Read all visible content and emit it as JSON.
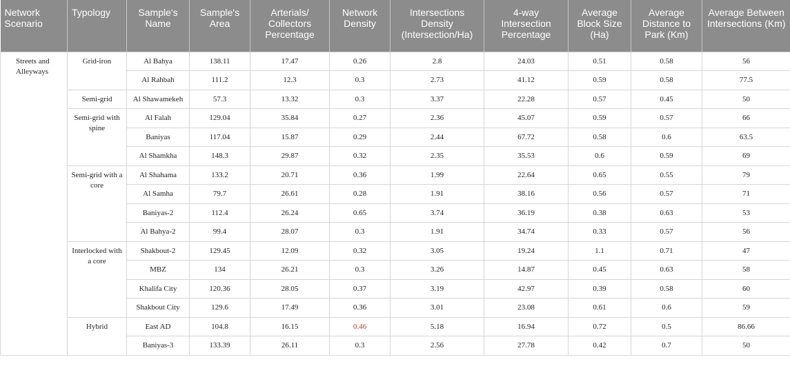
{
  "columns": [
    "Network Scenario",
    "Typology",
    "Sample's Name",
    "Sample's Area",
    "Arterials/ Collectors Percentage",
    "Network Density",
    "Intersections Density (Intersection/Ha)",
    "4-way Intersection Percentage",
    "Average Block Size (Ha)",
    "Average Distance to Park (Km)",
    "Average Between Intersections (Km)"
  ],
  "scenario": "Streets and Alleyways",
  "groups": [
    {
      "typology": "Grid-iron",
      "rows": [
        [
          "Al Bahya",
          "138.11",
          "17.47",
          "0.26",
          "2.8",
          "24.03",
          "0.51",
          "0.58",
          "56"
        ],
        [
          "Al Rahbah",
          "111.2",
          "12.3",
          "0.3",
          "2.73",
          "41.12",
          "0.59",
          "0.58",
          "77.5"
        ]
      ]
    },
    {
      "typology": "Semi-grid",
      "rows": [
        [
          "Al Shawamekeh",
          "57.3",
          "13.32",
          "0.3",
          "3.37",
          "22.28",
          "0.57",
          "0.45",
          "50"
        ]
      ]
    },
    {
      "typology": "Semi-grid with spine",
      "rows": [
        [
          "Al Falah",
          "129.04",
          "35.84",
          "0.27",
          "2.36",
          "45.07",
          "0.59",
          "0.57",
          "66"
        ],
        [
          "Baniyas",
          "117.04",
          "15.87",
          "0.29",
          "2.44",
          "67.72",
          "0.58",
          "0.6",
          "63.5"
        ],
        [
          "Al Shamkha",
          "148.3",
          "29.87",
          "0.32",
          "2.35",
          "35.53",
          "0.6",
          "0.59",
          "69"
        ]
      ]
    },
    {
      "typology": "Semi-grid with a core",
      "rows": [
        [
          "Al Shahama",
          "133.2",
          "20.71",
          "0.36",
          "1.99",
          "22.64",
          "0.65",
          "0.55",
          "79"
        ],
        [
          "Al Samha",
          "79.7",
          "26.61",
          "0.28",
          "1.91",
          "38.16",
          "0.56",
          "0.57",
          "71"
        ],
        [
          "Baniyas-2",
          "112.4",
          "26.24",
          "0.65",
          "3.74",
          "36.19",
          "0.38",
          "0.63",
          "53"
        ],
        [
          "Al Bahya-2",
          "99.4",
          "28.07",
          "0.3",
          "1.91",
          "34.74",
          "0.33",
          "0.57",
          "56"
        ]
      ]
    },
    {
      "typology": "Interlocked with a core",
      "rows": [
        [
          "Shakbout-2",
          "129.45",
          "12.09",
          "0.32",
          "3.05",
          "19.24",
          "1.1",
          "0.71",
          "47"
        ],
        [
          "MBZ",
          "134",
          "26.21",
          "0.3",
          "3.26",
          "14.87",
          "0.45",
          "0.63",
          "58"
        ],
        [
          "Khalifa City",
          "120.36",
          "28.05",
          "0.37",
          "3.19",
          "42.97",
          "0.39",
          "0.58",
          "60"
        ],
        [
          "Shakbout City",
          "129.6",
          "17.49",
          "0.36",
          "3.01",
          "23.08",
          "0.61",
          "0.6",
          "59"
        ]
      ]
    },
    {
      "typology": "Hybrid",
      "rows": [
        [
          "East AD",
          "104.8",
          "16.15",
          "0.46",
          "5.18",
          "16.94",
          "0.72",
          "0.5",
          "86.66"
        ],
        [
          "Baniyas-3",
          "133.39",
          "26.11",
          "0.3",
          "2.56",
          "27.78",
          "0.42",
          "0.7",
          "50"
        ]
      ]
    }
  ],
  "highlight_color": "#c0392b"
}
